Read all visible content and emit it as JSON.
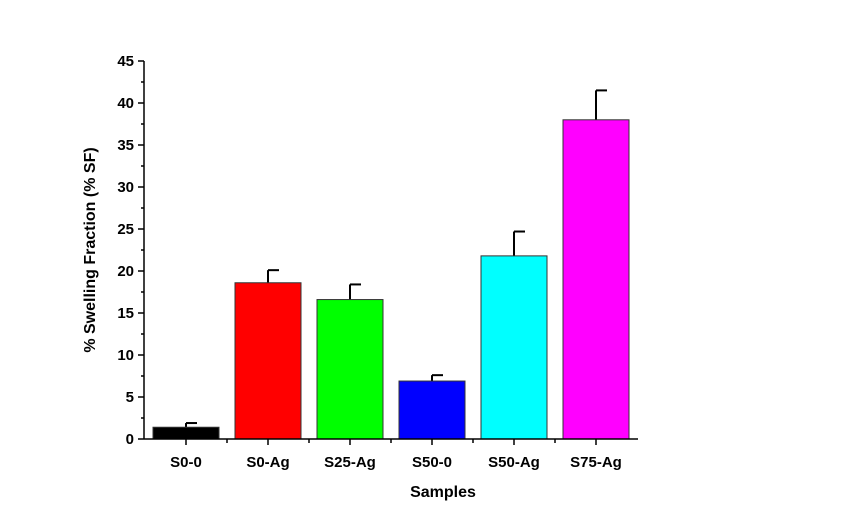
{
  "chart_data": {
    "type": "bar",
    "title": "",
    "xlabel": "Samples",
    "ylabel": "% Swelling Fraction (% SF)",
    "categories": [
      "S0-0",
      "S0-Ag",
      "S25-Ag",
      "S50-0",
      "S50-Ag",
      "S75-Ag"
    ],
    "values": [
      1.4,
      18.6,
      16.6,
      6.9,
      21.8,
      38.0
    ],
    "errors": [
      0.5,
      1.5,
      1.8,
      0.7,
      2.9,
      3.5
    ],
    "colors": [
      "#000000",
      "#ff0000",
      "#00ff00",
      "#0000ff",
      "#00ffff",
      "#ff00ff"
    ],
    "ylim": [
      0,
      45
    ],
    "yticks": [
      "0",
      "5",
      "10",
      "15",
      "20",
      "25",
      "30",
      "35",
      "40",
      "45"
    ],
    "grid": false,
    "legend": "none"
  }
}
